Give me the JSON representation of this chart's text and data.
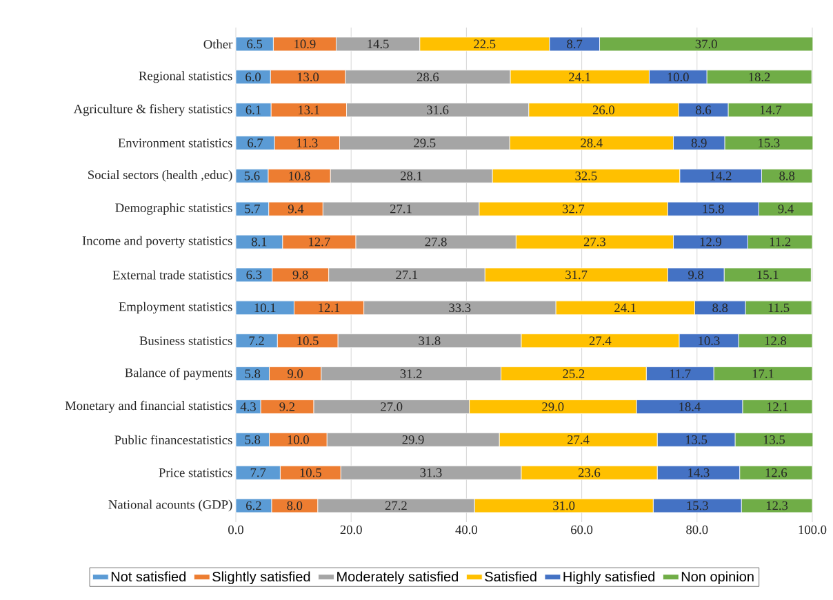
{
  "chart_data": {
    "type": "bar",
    "orientation": "horizontal",
    "stacked": true,
    "categories": [
      "Other",
      "Regional statistics",
      "Agriculture & fishery statistics",
      "Environment statistics",
      "Social sectors (health ,educ)",
      "Demographic statistics",
      "Income and poverty statistics",
      "External trade statistics",
      "Employment statistics",
      "Business statistics",
      "Balance of payments",
      "Monetary and financial statistics",
      "Public financestatistics",
      "Price statistics",
      "National acounts (GDP)"
    ],
    "series": [
      {
        "name": "Not satisfied",
        "color": "#5b9bd5",
        "values": [
          6.5,
          6.0,
          6.1,
          6.7,
          5.6,
          5.7,
          8.1,
          6.3,
          10.1,
          7.2,
          5.8,
          4.3,
          5.8,
          7.7,
          6.2
        ],
        "value_labels": [
          "6.5",
          "6.0",
          "6.1",
          "6.7",
          "5.6",
          "5.7",
          "8.1",
          "6.3",
          "10.1",
          "7.2",
          "5.8",
          "4.3",
          "5.8",
          "7.7",
          "6.2"
        ]
      },
      {
        "name": "Slightly satisfied",
        "color": "#ed7d31",
        "values": [
          10.9,
          13.0,
          13.1,
          11.3,
          10.8,
          9.4,
          12.7,
          9.8,
          12.1,
          10.5,
          9.0,
          9.2,
          10.0,
          10.5,
          8.0
        ],
        "value_labels": [
          "10.9",
          "13.0",
          "13.1",
          "11.3",
          "10.8",
          "9.4",
          "12.7",
          "9.8",
          "12.1",
          "10.5",
          "9.0",
          "9.2",
          "10.0",
          "10.5",
          "8.0"
        ]
      },
      {
        "name": "Moderately satisfied",
        "color": "#a5a5a5",
        "values": [
          14.5,
          28.6,
          31.6,
          29.5,
          28.1,
          27.1,
          27.8,
          27.1,
          33.3,
          31.8,
          31.2,
          27.0,
          29.9,
          31.3,
          27.2
        ],
        "value_labels": [
          "14.5",
          "28.6",
          "31.6",
          "29.5",
          "28.1",
          "27.1",
          "27.8",
          "27.1",
          "33.3",
          "31.8",
          "31.2",
          "27.0",
          "29.9",
          "31.3",
          "27.2"
        ]
      },
      {
        "name": "Satisfied",
        "color": "#ffc000",
        "values": [
          22.5,
          24.1,
          26.0,
          28.4,
          32.5,
          32.7,
          27.3,
          31.7,
          24.1,
          27.4,
          25.2,
          29.0,
          27.4,
          23.6,
          31.0
        ],
        "value_labels": [
          "22.5",
          "24.1",
          "26.0",
          "28.4",
          "32.5",
          "32.7",
          "27.3",
          "31.7",
          "24.1",
          "27.4",
          "25.2",
          "29.0",
          "27.4",
          "23.6",
          "31.0"
        ]
      },
      {
        "name": "Highly satisfied",
        "color": "#4472c4",
        "values": [
          8.7,
          10.0,
          8.6,
          8.9,
          14.2,
          15.8,
          12.9,
          9.8,
          8.8,
          10.3,
          11.7,
          18.4,
          13.5,
          14.3,
          15.3
        ],
        "value_labels": [
          "8.7",
          "10.0",
          "8.6",
          "8.9",
          "14.2",
          "15.8",
          "12.9",
          "9.8",
          "8.8",
          "10.3",
          "11.7",
          "18.4",
          "13.5",
          "14.3",
          "15.3"
        ]
      },
      {
        "name": "Non opinion",
        "color": "#70ad47",
        "values": [
          37.0,
          18.2,
          14.7,
          15.3,
          8.8,
          9.4,
          11.2,
          15.1,
          11.5,
          12.8,
          17.1,
          12.1,
          13.5,
          12.6,
          12.3
        ],
        "value_labels": [
          "37.0",
          "18.2",
          "14.7",
          "15.3",
          "8.8",
          "9.4",
          "11.2",
          "15.1",
          "11.5",
          "12.8",
          "17.1",
          "12.1",
          "13.5",
          "12.6",
          "12.3"
        ]
      }
    ],
    "xlim": [
      0,
      100
    ],
    "xticks": [
      {
        "value": 0,
        "label": "0.0"
      },
      {
        "value": 20,
        "label": "20.0"
      },
      {
        "value": 40,
        "label": "40.0"
      },
      {
        "value": 60,
        "label": "60.0"
      },
      {
        "value": 80,
        "label": "80.0"
      },
      {
        "value": 100,
        "label": "100.0"
      }
    ],
    "grid": "x",
    "legend": "bottom"
  }
}
